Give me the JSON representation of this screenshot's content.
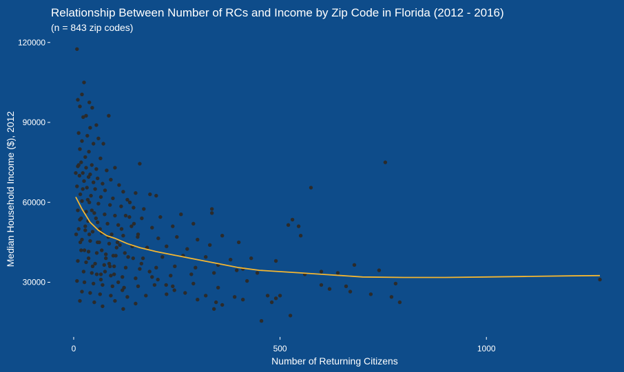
{
  "chart_data": {
    "type": "scatter",
    "title": "Relationship Between Number of RCs and Income by Zip Code in Florida (2012 - 2016)",
    "subtitle": "(n = 843 zip codes)",
    "xlabel": "Number of Returning Citizens",
    "ylabel": "Median Household Income ($), 2012",
    "xlim": [
      -30,
      1290
    ],
    "ylim": [
      10000,
      122000
    ],
    "x_ticks": [
      0,
      500,
      1000
    ],
    "x_tick_labels": [
      "0",
      "500",
      "1000"
    ],
    "y_ticks": [
      30000,
      60000,
      90000,
      120000
    ],
    "y_tick_labels": [
      "30000",
      "60000",
      "90000",
      "120000"
    ],
    "grid": false,
    "legend": "none",
    "point_color": "#2b2b2b",
    "trend_color": "#f5b731",
    "background_color": "#0e4c8a",
    "points": [
      [
        8,
        117500
      ],
      [
        25,
        105000
      ],
      [
        20,
        100500
      ],
      [
        10,
        98500
      ],
      [
        38,
        97500
      ],
      [
        15,
        96000
      ],
      [
        45,
        95500
      ],
      [
        30,
        92500
      ],
      [
        23,
        92000
      ],
      [
        85,
        92500
      ],
      [
        55,
        89000
      ],
      [
        40,
        88000
      ],
      [
        12,
        86000
      ],
      [
        33,
        85000
      ],
      [
        60,
        84000
      ],
      [
        20,
        83000
      ],
      [
        48,
        82000
      ],
      [
        72,
        82000
      ],
      [
        15,
        80000
      ],
      [
        37,
        79000
      ],
      [
        28,
        77000
      ],
      [
        65,
        76500
      ],
      [
        18,
        75000
      ],
      [
        44,
        74000
      ],
      [
        10,
        73500
      ],
      [
        30,
        73000
      ],
      [
        55,
        72500
      ],
      [
        80,
        72000
      ],
      [
        22,
        71000
      ],
      [
        40,
        70500
      ],
      [
        100,
        73000
      ],
      [
        160,
        74500
      ],
      [
        14,
        70000
      ],
      [
        36,
        69500
      ],
      [
        58,
        69000
      ],
      [
        90,
        68500
      ],
      [
        25,
        68000
      ],
      [
        48,
        67500
      ],
      [
        70,
        67000
      ],
      [
        110,
        66500
      ],
      [
        8,
        66000
      ],
      [
        32,
        65500
      ],
      [
        52,
        65000
      ],
      [
        76,
        64500
      ],
      [
        120,
        64000
      ],
      [
        150,
        63500
      ],
      [
        185,
        63000
      ],
      [
        16,
        63000
      ],
      [
        42,
        62500
      ],
      [
        66,
        62000
      ],
      [
        95,
        61500
      ],
      [
        130,
        61000
      ],
      [
        200,
        62500
      ],
      [
        20,
        60500
      ],
      [
        38,
        60000
      ],
      [
        60,
        59500
      ],
      [
        88,
        59000
      ],
      [
        115,
        58500
      ],
      [
        145,
        58000
      ],
      [
        170,
        57500
      ],
      [
        335,
        57500
      ],
      [
        335,
        56000
      ],
      [
        10,
        57000
      ],
      [
        30,
        56500
      ],
      [
        50,
        56000
      ],
      [
        75,
        55500
      ],
      [
        100,
        55000
      ],
      [
        135,
        54500
      ],
      [
        165,
        54000
      ],
      [
        210,
        54500
      ],
      [
        260,
        55500
      ],
      [
        530,
        53500
      ],
      [
        15,
        53500
      ],
      [
        35,
        53000
      ],
      [
        58,
        52500
      ],
      [
        82,
        52000
      ],
      [
        108,
        51500
      ],
      [
        140,
        51000
      ],
      [
        190,
        50500
      ],
      [
        240,
        51000
      ],
      [
        290,
        52000
      ],
      [
        520,
        51500
      ],
      [
        545,
        51000
      ],
      [
        12,
        50000
      ],
      [
        28,
        49500
      ],
      [
        46,
        49000
      ],
      [
        68,
        48500
      ],
      [
        92,
        48000
      ],
      [
        120,
        47500
      ],
      [
        155,
        47000
      ],
      [
        205,
        46500
      ],
      [
        250,
        47000
      ],
      [
        300,
        46000
      ],
      [
        360,
        47500
      ],
      [
        550,
        47500
      ],
      [
        400,
        45000
      ],
      [
        20,
        46000
      ],
      [
        40,
        45500
      ],
      [
        62,
        45000
      ],
      [
        86,
        44500
      ],
      [
        112,
        44000
      ],
      [
        142,
        43500
      ],
      [
        178,
        43000
      ],
      [
        225,
        43500
      ],
      [
        275,
        42500
      ],
      [
        330,
        44000
      ],
      [
        18,
        42000
      ],
      [
        36,
        41500
      ],
      [
        56,
        41000
      ],
      [
        78,
        40500
      ],
      [
        102,
        40000
      ],
      [
        132,
        39500
      ],
      [
        168,
        39000
      ],
      [
        215,
        39500
      ],
      [
        265,
        40000
      ],
      [
        320,
        39500
      ],
      [
        380,
        38500
      ],
      [
        430,
        39000
      ],
      [
        490,
        38000
      ],
      [
        10,
        38000
      ],
      [
        30,
        37500
      ],
      [
        52,
        37000
      ],
      [
        74,
        36500
      ],
      [
        98,
        36000
      ],
      [
        126,
        35500
      ],
      [
        160,
        35000
      ],
      [
        200,
        35500
      ],
      [
        245,
        36000
      ],
      [
        295,
        35500
      ],
      [
        350,
        36500
      ],
      [
        410,
        35000
      ],
      [
        680,
        36500
      ],
      [
        24,
        34000
      ],
      [
        44,
        33500
      ],
      [
        66,
        33000
      ],
      [
        90,
        32500
      ],
      [
        118,
        32000
      ],
      [
        150,
        31500
      ],
      [
        190,
        32000
      ],
      [
        235,
        32500
      ],
      [
        285,
        33000
      ],
      [
        340,
        33500
      ],
      [
        395,
        34500
      ],
      [
        445,
        33500
      ],
      [
        560,
        33000
      ],
      [
        600,
        34000
      ],
      [
        640,
        33500
      ],
      [
        740,
        34500
      ],
      [
        8,
        30500
      ],
      [
        26,
        30000
      ],
      [
        48,
        29500
      ],
      [
        70,
        29000
      ],
      [
        94,
        28500
      ],
      [
        122,
        28000
      ],
      [
        156,
        28500
      ],
      [
        196,
        29000
      ],
      [
        240,
        28500
      ],
      [
        290,
        29500
      ],
      [
        350,
        28000
      ],
      [
        420,
        30500
      ],
      [
        600,
        29000
      ],
      [
        660,
        28500
      ],
      [
        780,
        29500
      ],
      [
        20,
        26500
      ],
      [
        40,
        26000
      ],
      [
        64,
        25500
      ],
      [
        90,
        25000
      ],
      [
        130,
        24500
      ],
      [
        175,
        25000
      ],
      [
        225,
        25500
      ],
      [
        270,
        26000
      ],
      [
        320,
        25000
      ],
      [
        390,
        24500
      ],
      [
        470,
        25000
      ],
      [
        490,
        24000
      ],
      [
        720,
        25500
      ],
      [
        770,
        24500
      ],
      [
        15,
        23000
      ],
      [
        50,
        22500
      ],
      [
        100,
        23000
      ],
      [
        150,
        22000
      ],
      [
        300,
        23500
      ],
      [
        345,
        22500
      ],
      [
        360,
        21500
      ],
      [
        410,
        23500
      ],
      [
        480,
        22500
      ],
      [
        500,
        25000
      ],
      [
        620,
        27500
      ],
      [
        670,
        26500
      ],
      [
        790,
        22500
      ],
      [
        70,
        21000
      ],
      [
        120,
        20000
      ],
      [
        340,
        20000
      ],
      [
        455,
        15500
      ],
      [
        525,
        17500
      ],
      [
        755,
        75000
      ],
      [
        575,
        65500
      ],
      [
        1275,
        31000
      ],
      [
        5,
        71000
      ],
      [
        12,
        74000
      ],
      [
        22,
        65000
      ],
      [
        34,
        61000
      ],
      [
        44,
        57000
      ],
      [
        54,
        54000
      ],
      [
        64,
        50000
      ],
      [
        84,
        47000
      ],
      [
        104,
        43000
      ],
      [
        124,
        41000
      ],
      [
        144,
        39000
      ],
      [
        164,
        37000
      ],
      [
        184,
        34000
      ],
      [
        204,
        31000
      ],
      [
        224,
        29000
      ],
      [
        244,
        27000
      ],
      [
        18,
        54000
      ],
      [
        28,
        51000
      ],
      [
        38,
        48000
      ],
      [
        58,
        45000
      ],
      [
        68,
        42000
      ],
      [
        78,
        39000
      ],
      [
        88,
        36000
      ],
      [
        98,
        33000
      ],
      [
        108,
        30000
      ],
      [
        118,
        27000
      ],
      [
        6,
        48000
      ],
      [
        16,
        45000
      ],
      [
        26,
        42000
      ],
      [
        36,
        39000
      ],
      [
        46,
        36000
      ],
      [
        56,
        33000
      ],
      [
        66,
        31000
      ],
      [
        76,
        34000
      ],
      [
        86,
        37000
      ],
      [
        96,
        40000
      ],
      [
        106,
        45000
      ],
      [
        116,
        50000
      ],
      [
        126,
        55000
      ],
      [
        136,
        60000
      ],
      [
        146,
        52000
      ],
      [
        156,
        48000
      ]
    ],
    "trend": [
      [
        5,
        62000
      ],
      [
        20,
        57500
      ],
      [
        40,
        52500
      ],
      [
        60,
        49500
      ],
      [
        80,
        47500
      ],
      [
        100,
        46500
      ],
      [
        130,
        44500
      ],
      [
        160,
        43000
      ],
      [
        200,
        41500
      ],
      [
        250,
        40000
      ],
      [
        300,
        38500
      ],
      [
        350,
        37000
      ],
      [
        400,
        35500
      ],
      [
        450,
        34500
      ],
      [
        500,
        34000
      ],
      [
        550,
        33500
      ],
      [
        600,
        33000
      ],
      [
        650,
        32500
      ],
      [
        700,
        32000
      ],
      [
        800,
        31800
      ],
      [
        900,
        31800
      ],
      [
        1000,
        32000
      ],
      [
        1100,
        32200
      ],
      [
        1200,
        32400
      ],
      [
        1275,
        32500
      ]
    ]
  }
}
